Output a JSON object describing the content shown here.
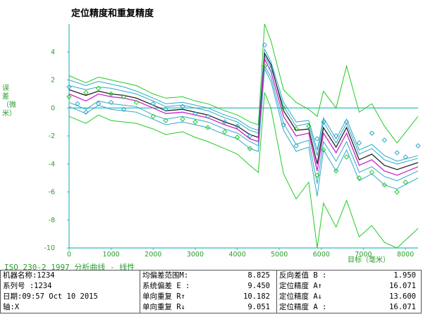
{
  "title": "定位精度和重复精度",
  "ylabel": "误差（微米）",
  "xunit": "目标（毫米）",
  "subtitle": "ISO 230-2 1997 分析曲线 - 线性",
  "info": {
    "col1": [
      "机器名称:1234",
      "系列号  :1234",
      "日期:09:57 Oct 10 2015",
      "轴:X"
    ],
    "col2": [
      {
        "label": "均偏差范围M:",
        "value": "8.825"
      },
      {
        "label": "系统偏差 E :",
        "value": "9.450"
      },
      {
        "label": "单向重复 R↑",
        "value": "10.182"
      },
      {
        "label": "单向重复 R↓",
        "value": "9.051"
      }
    ],
    "col3": [
      {
        "label": "反向差值 B :",
        "value": "1.950"
      },
      {
        "label": "定位精度 A↑",
        "value": "16.071"
      },
      {
        "label": "定位精度 A↓",
        "value": "13.600"
      },
      {
        "label": "定位精度 A :",
        "value": "16.071"
      }
    ]
  },
  "colors": {
    "green": "#22cc22",
    "cyan": "#2fa8c8",
    "magenta": "#cc22cc",
    "black": "#222222",
    "axis": "#33bbbb",
    "tick": "#2a9d2a"
  },
  "chart_data": {
    "type": "line",
    "xlim": [
      0,
      8300
    ],
    "ylim": [
      -10,
      6
    ],
    "xticks": [
      0,
      1000,
      2000,
      3000,
      4000,
      5000,
      6000,
      7000,
      8000
    ],
    "yticks": [
      4,
      2,
      0,
      -2,
      -4,
      -6,
      -8,
      -10
    ],
    "x": [
      0,
      400,
      700,
      1000,
      1300,
      1600,
      2000,
      2300,
      2700,
      3000,
      3300,
      3700,
      4000,
      4300,
      4500,
      4650,
      4800,
      5100,
      5400,
      5700,
      5900,
      6050,
      6350,
      6600,
      6900,
      7200,
      7500,
      7800,
      8300
    ],
    "series": [
      {
        "role": "mean_forward",
        "color": "magenta",
        "values": [
          1.0,
          0.5,
          1.0,
          0.8,
          0.7,
          0.5,
          0.0,
          -0.4,
          -0.3,
          -0.5,
          -0.7,
          -1.2,
          -1.5,
          -2.2,
          -2.4,
          3.5,
          2.6,
          -0.6,
          -2.0,
          -1.8,
          -4.5,
          -1.8,
          -3.2,
          -1.8,
          -4.1,
          -3.7,
          -4.5,
          -4.8,
          -4.2
        ]
      },
      {
        "role": "mean_reverse",
        "color": "black",
        "values": [
          1.3,
          0.9,
          1.2,
          1.0,
          0.9,
          0.7,
          0.2,
          -0.2,
          -0.1,
          -0.3,
          -0.5,
          -1.0,
          -1.3,
          -1.9,
          -2.1,
          3.9,
          3.1,
          -0.2,
          -1.6,
          -1.5,
          -4.0,
          -1.4,
          -2.8,
          -1.4,
          -3.7,
          -3.3,
          -4.1,
          -4.4,
          -3.9
        ]
      },
      {
        "role": "upper_band_forward",
        "color": "cyan",
        "values": [
          2.0,
          1.6,
          1.9,
          1.7,
          1.5,
          1.2,
          0.7,
          0.3,
          0.4,
          0.2,
          0.0,
          -0.5,
          -0.8,
          -1.4,
          -1.6,
          4.2,
          3.3,
          0.4,
          -1.0,
          -0.9,
          -3.0,
          -0.7,
          -2.2,
          -0.8,
          -3.0,
          -2.6,
          -3.4,
          -3.8,
          -3.4
        ]
      },
      {
        "role": "lower_band_forward",
        "color": "cyan",
        "values": [
          0.1,
          -0.4,
          0.2,
          -0.1,
          -0.2,
          -0.3,
          -0.8,
          -1.2,
          -1.0,
          -1.2,
          -1.4,
          -1.9,
          -2.2,
          -2.9,
          -3.1,
          2.8,
          1.9,
          -1.6,
          -3.1,
          -2.8,
          -6.3,
          -3.0,
          -4.5,
          -3.0,
          -5.2,
          -4.7,
          -5.5,
          -5.8,
          -5.0
        ]
      },
      {
        "role": "upper_band_reverse",
        "color": "cyan",
        "values": [
          1.6,
          1.3,
          1.5,
          1.4,
          1.2,
          1.0,
          0.5,
          0.1,
          0.2,
          0.0,
          -0.2,
          -0.7,
          -1.0,
          -1.6,
          -1.8,
          3.7,
          2.9,
          0.1,
          -1.3,
          -1.1,
          -3.4,
          -1.0,
          -2.5,
          -1.1,
          -3.3,
          -2.9,
          -3.7,
          -4.0,
          -3.6
        ]
      },
      {
        "role": "lower_band_reverse",
        "color": "cyan",
        "values": [
          0.4,
          -0.1,
          0.5,
          0.3,
          0.2,
          0.1,
          -0.5,
          -0.8,
          -0.6,
          -0.8,
          -1.0,
          -1.5,
          -1.8,
          -2.4,
          -2.7,
          3.0,
          2.2,
          -1.1,
          -2.6,
          -2.3,
          -5.4,
          -2.4,
          -3.8,
          -2.4,
          -4.6,
          -4.2,
          -4.9,
          -5.2,
          -4.5
        ]
      },
      {
        "role": "outer_upper",
        "color": "green",
        "values": [
          2.3,
          1.8,
          2.2,
          2.0,
          1.8,
          1.6,
          1.0,
          0.7,
          0.8,
          0.5,
          0.3,
          -0.2,
          -0.5,
          -1.0,
          -1.2,
          6.0,
          4.8,
          1.3,
          0.4,
          -0.1,
          -0.6,
          1.2,
          0.0,
          3.0,
          -0.3,
          0.3,
          -1.3,
          -2.5,
          -0.6
        ]
      },
      {
        "role": "outer_lower",
        "color": "green",
        "values": [
          -0.6,
          -1.1,
          -0.5,
          -0.9,
          -1.0,
          -1.1,
          -1.5,
          -1.9,
          -1.7,
          -2.1,
          -2.4,
          -2.9,
          -3.3,
          -4.1,
          -4.6,
          1.1,
          0.0,
          -4.7,
          -6.5,
          -5.3,
          -10.0,
          -6.8,
          -8.5,
          -6.6,
          -9.2,
          -8.4,
          -9.6,
          -10.0,
          -8.6
        ]
      }
    ],
    "markers": [
      {
        "x": 0,
        "y": 1.5
      },
      {
        "x": 0,
        "y": 0.8
      },
      {
        "x": 200,
        "y": 0.3
      },
      {
        "x": 400,
        "y": 1.1
      },
      {
        "x": 400,
        "y": -0.3
      },
      {
        "x": 700,
        "y": 1.4
      },
      {
        "x": 700,
        "y": 0.3
      },
      {
        "x": 1000,
        "y": 1.0
      },
      {
        "x": 1000,
        "y": 0.4
      },
      {
        "x": 1300,
        "y": 0.8
      },
      {
        "x": 1300,
        "y": -0.1
      },
      {
        "x": 1600,
        "y": 0.4
      },
      {
        "x": 2000,
        "y": 0.3
      },
      {
        "x": 2000,
        "y": -0.6
      },
      {
        "x": 2300,
        "y": -0.1
      },
      {
        "x": 2300,
        "y": -0.9
      },
      {
        "x": 2700,
        "y": 0.1
      },
      {
        "x": 2700,
        "y": -0.8
      },
      {
        "x": 3000,
        "y": -0.4
      },
      {
        "x": 3000,
        "y": -1.0
      },
      {
        "x": 3300,
        "y": -0.6
      },
      {
        "x": 3300,
        "y": -1.4
      },
      {
        "x": 3700,
        "y": -1.0
      },
      {
        "x": 3700,
        "y": -1.7
      },
      {
        "x": 4000,
        "y": -1.3
      },
      {
        "x": 4000,
        "y": -2.1
      },
      {
        "x": 4300,
        "y": -2.0
      },
      {
        "x": 4300,
        "y": -2.9
      },
      {
        "x": 4650,
        "y": 4.5
      },
      {
        "x": 4650,
        "y": 3.0
      },
      {
        "x": 4800,
        "y": 2.8
      },
      {
        "x": 5100,
        "y": 0.0
      },
      {
        "x": 5100,
        "y": -1.2
      },
      {
        "x": 5400,
        "y": -1.5
      },
      {
        "x": 5400,
        "y": -2.7
      },
      {
        "x": 5700,
        "y": -1.3
      },
      {
        "x": 5900,
        "y": -2.2
      },
      {
        "x": 5900,
        "y": -4.8
      },
      {
        "x": 6050,
        "y": -1.0
      },
      {
        "x": 6050,
        "y": -3.0
      },
      {
        "x": 6350,
        "y": -2.0
      },
      {
        "x": 6350,
        "y": -4.5
      },
      {
        "x": 6600,
        "y": -1.0
      },
      {
        "x": 6600,
        "y": -3.5
      },
      {
        "x": 6900,
        "y": -2.5
      },
      {
        "x": 6900,
        "y": -5.0
      },
      {
        "x": 7200,
        "y": -1.8
      },
      {
        "x": 7200,
        "y": -4.6
      },
      {
        "x": 7500,
        "y": -2.3
      },
      {
        "x": 7500,
        "y": -5.5
      },
      {
        "x": 7800,
        "y": -3.2
      },
      {
        "x": 7800,
        "y": -6.0
      },
      {
        "x": 8000,
        "y": -3.5
      },
      {
        "x": 8000,
        "y": -5.3
      },
      {
        "x": 8300,
        "y": -2.7
      }
    ]
  }
}
